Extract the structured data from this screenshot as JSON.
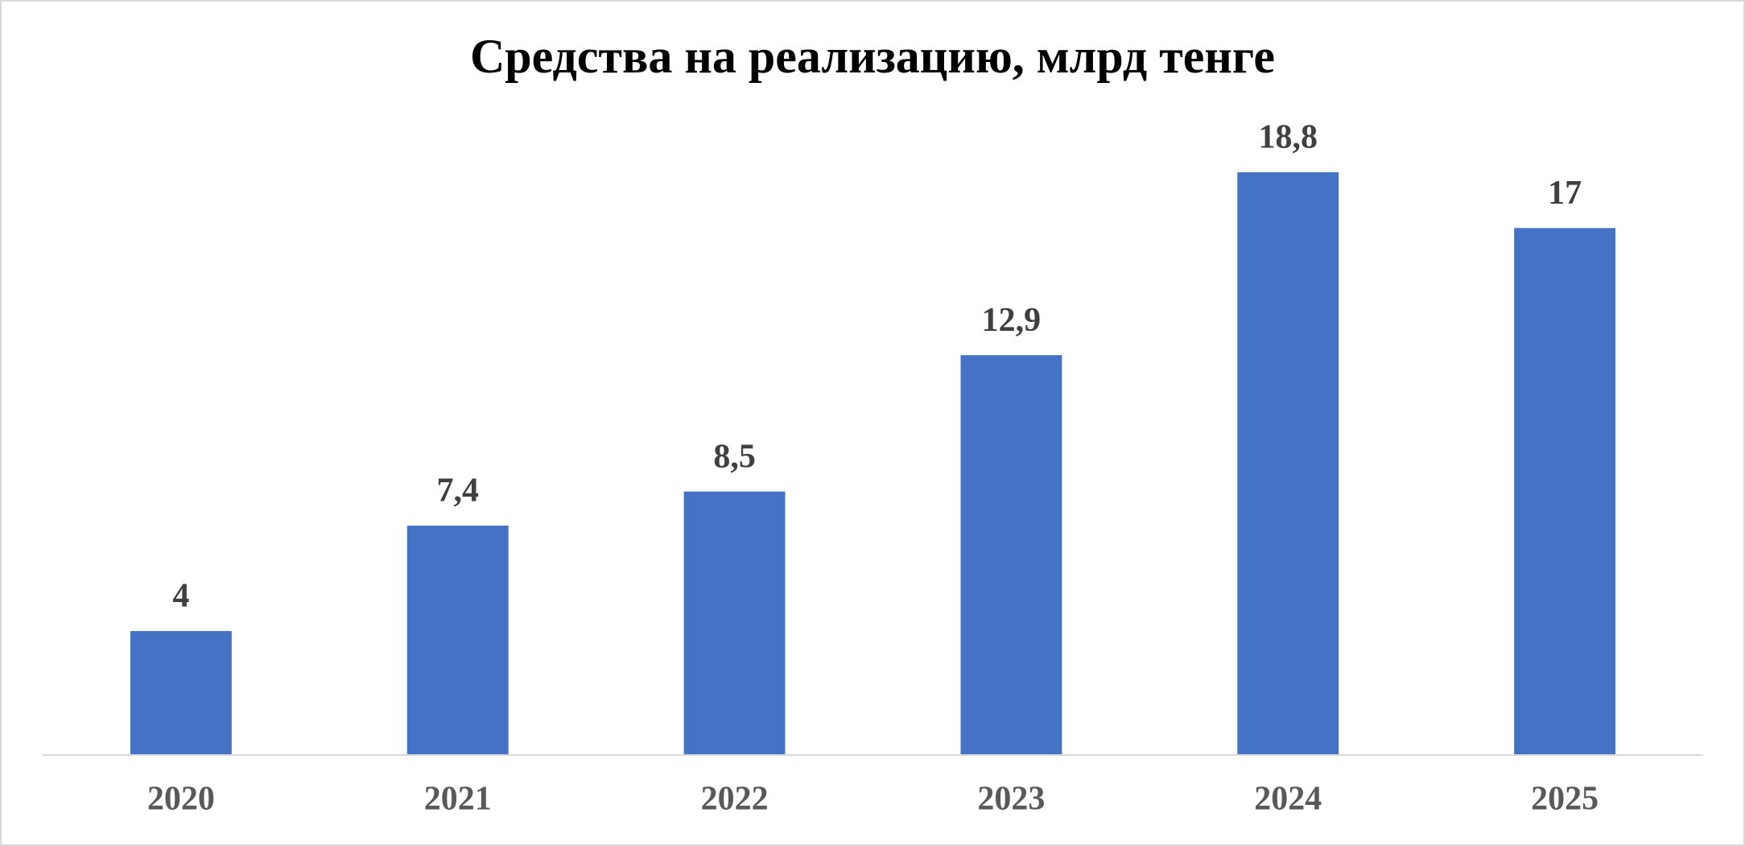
{
  "chart_data": {
    "type": "bar",
    "title": "Средства на реализацию, млрд тенге",
    "categories": [
      "2020",
      "2021",
      "2022",
      "2023",
      "2024",
      "2025"
    ],
    "values": [
      4,
      7.4,
      8.5,
      12.9,
      18.8,
      17
    ],
    "value_labels": [
      "4",
      "7,4",
      "8,5",
      "12,9",
      "18,8",
      "17"
    ],
    "color": "#4472c4"
  }
}
